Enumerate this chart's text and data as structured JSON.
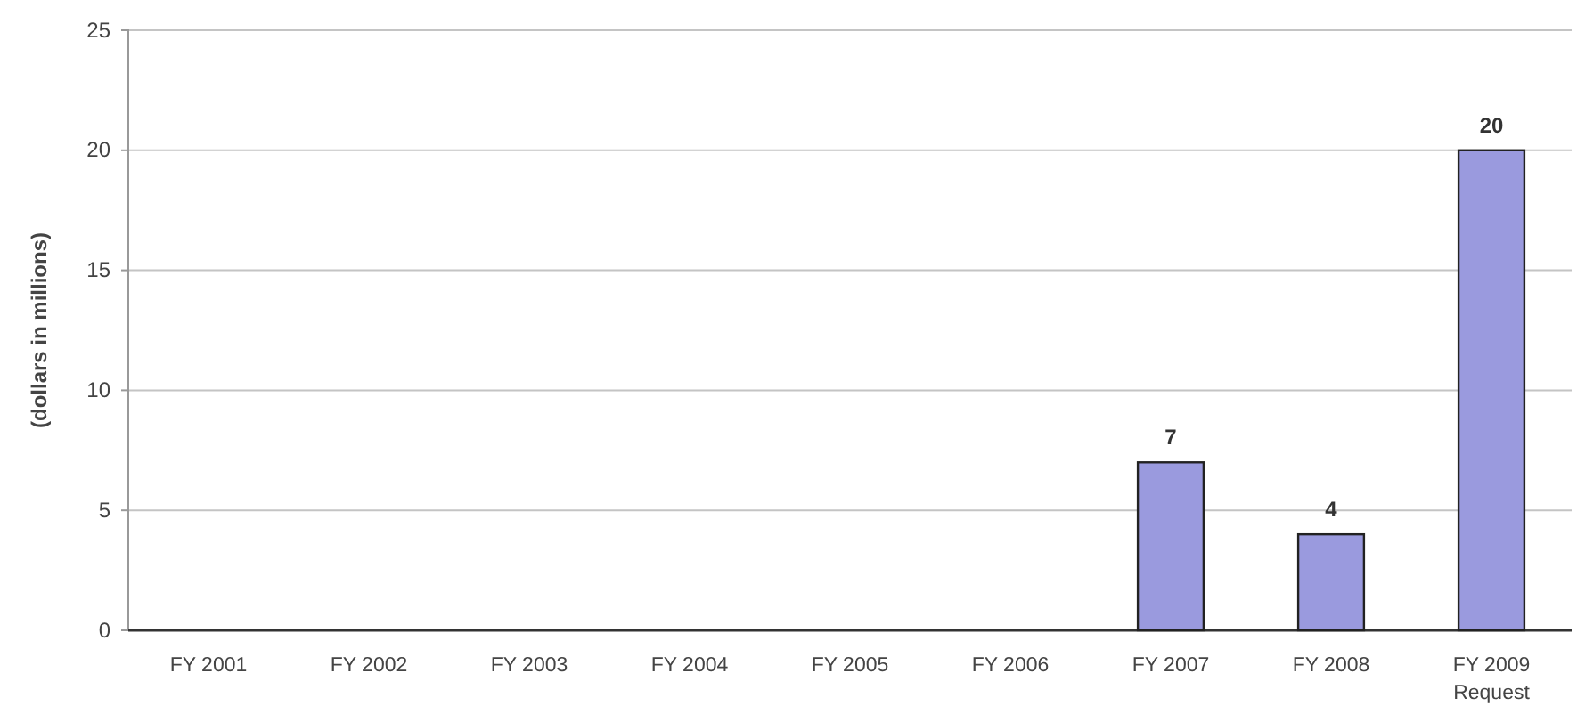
{
  "chart_data": {
    "type": "bar",
    "ylabel": "(dollars in millions)",
    "categories": [
      "FY 2001",
      "FY 2002",
      "FY 2003",
      "FY 2004",
      "FY 2005",
      "FY 2006",
      "FY 2007",
      "FY 2008",
      "FY 2009\nRequest"
    ],
    "values": [
      null,
      null,
      null,
      null,
      null,
      null,
      7,
      4,
      20
    ],
    "color": "#9a9ade",
    "ylim": [
      0,
      25
    ],
    "yticks": [
      0,
      5,
      10,
      15,
      20,
      25
    ],
    "grid": "y",
    "data_labels": true
  }
}
